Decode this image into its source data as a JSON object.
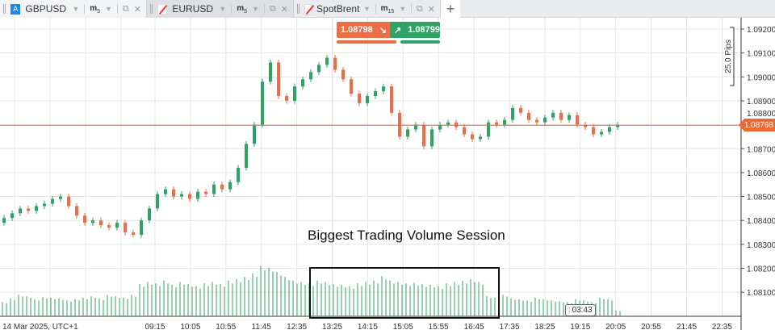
{
  "tabs": [
    {
      "symbol": "GBPUSD",
      "timeframe": "m",
      "timeframe_sub": "5",
      "icon": "A"
    },
    {
      "symbol": "EURUSD",
      "timeframe": "m",
      "timeframe_sub": "5",
      "icon": "chart-slash"
    },
    {
      "symbol": "SpotBrent",
      "timeframe": "m",
      "timeframe_sub": "15",
      "icon": "chart-slash"
    }
  ],
  "add_tab": "+",
  "trade": {
    "sell_price": "1.08798",
    "buy_price": "1.08799",
    "sell_color": "#ec6e46",
    "buy_color": "#2fa266"
  },
  "current_price": "1.08798",
  "timer": "03:43",
  "measure_label": "25.0 Pips",
  "annotation": "Biggest Trading Volume Session",
  "chart_data": {
    "type": "candlestick",
    "price_axis": {
      "ticks": [
        "1.09200",
        "1.09100",
        "1.09000",
        "1.08900",
        "1.08800",
        "1.08700",
        "1.08600",
        "1.08500",
        "1.08400",
        "1.08300",
        "1.08200",
        "1.08100"
      ],
      "range": [
        1.0806,
        1.0925
      ]
    },
    "time_axis": {
      "ticks": [
        "14 Mar 2025, UTC+1",
        "09:15",
        "10:05",
        "10:55",
        "11:45",
        "12:35",
        "13:25",
        "14:15",
        "15:05",
        "15:55",
        "16:45",
        "17:35",
        "18:25",
        "19:15",
        "20:05",
        "20:55",
        "21:45",
        "22:35"
      ]
    },
    "closes": [
      1.0841,
      1.0843,
      1.0845,
      1.0844,
      1.0846,
      1.0847,
      1.0849,
      1.085,
      1.0846,
      1.0842,
      1.0839,
      1.084,
      1.0838,
      1.0837,
      1.0839,
      1.0835,
      1.0834,
      1.084,
      1.0845,
      1.0851,
      1.0853,
      1.085,
      1.0851,
      1.0849,
      1.0852,
      1.0851,
      1.0855,
      1.0853,
      1.0856,
      1.0862,
      1.0872,
      1.088,
      1.0898,
      1.0906,
      1.0892,
      1.089,
      1.0896,
      1.0899,
      1.0902,
      1.0905,
      1.0908,
      1.0903,
      1.0899,
      1.0893,
      1.0889,
      1.0892,
      1.0894,
      1.0896,
      1.0885,
      1.0875,
      1.0878,
      1.088,
      1.0871,
      1.0878,
      1.088,
      1.0881,
      1.0879,
      1.0876,
      1.0874,
      1.0875,
      1.0881,
      1.088,
      1.0882,
      1.0887,
      1.0885,
      1.0882,
      1.0881,
      1.0883,
      1.0885,
      1.0882,
      1.0884,
      1.088,
      1.0879,
      1.0876,
      1.0877,
      1.0879,
      1.088
    ],
    "volumes": [
      20,
      25,
      30,
      28,
      24,
      27,
      26,
      25,
      22,
      24,
      26,
      28,
      25,
      30,
      28,
      26,
      30,
      45,
      48,
      46,
      50,
      44,
      48,
      45,
      42,
      46,
      48,
      45,
      50,
      52,
      55,
      60,
      70,
      68,
      62,
      55,
      50,
      48,
      46,
      50,
      48,
      45,
      44,
      42,
      46,
      48,
      50,
      56,
      50,
      48,
      46,
      47,
      45,
      44,
      42,
      46,
      48,
      50,
      52,
      48,
      28,
      26,
      30,
      25,
      24,
      22,
      26,
      24,
      22,
      21,
      20,
      24,
      22,
      20,
      26,
      24,
      8
    ],
    "volume_color": "#2fa266",
    "up_color": "#2fa266",
    "down_color": "#ec6e46"
  }
}
